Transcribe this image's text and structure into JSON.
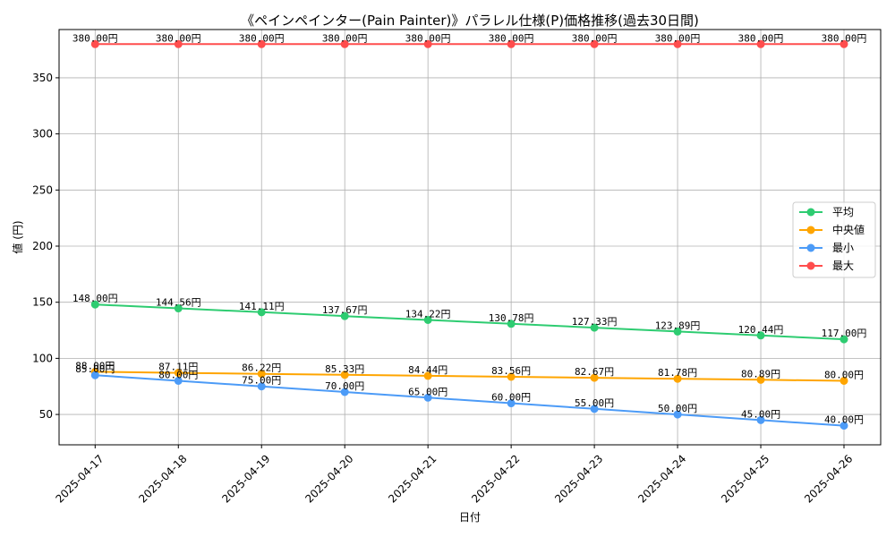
{
  "chart_data": {
    "type": "line",
    "title": "《ペインペインター(Pain Painter)》パラレル仕様(P)価格推移(過去30日間)",
    "xlabel": "日付",
    "ylabel": "値 (円)",
    "x": [
      "2025-04-17",
      "2025-04-18",
      "2025-04-19",
      "2025-04-20",
      "2025-04-21",
      "2025-04-22",
      "2025-04-23",
      "2025-04-24",
      "2025-04-25",
      "2025-04-26"
    ],
    "ylim": [
      22.95,
      393.0
    ],
    "yticks": [
      50,
      100,
      150,
      200,
      250,
      300,
      350
    ],
    "grid": true,
    "legend_position": "center-right",
    "value_suffix": "円",
    "series": [
      {
        "name": "平均",
        "color": "#2ecc71",
        "values": [
          148.0,
          144.56,
          141.11,
          137.67,
          134.22,
          130.78,
          127.33,
          123.89,
          120.44,
          117.0
        ]
      },
      {
        "name": "中央値",
        "color": "#ffa500",
        "values": [
          88.0,
          87.11,
          86.22,
          85.33,
          84.44,
          83.56,
          82.67,
          81.78,
          80.89,
          80.0
        ]
      },
      {
        "name": "最小",
        "color": "#4c9bf7",
        "values": [
          85.0,
          80.0,
          75.0,
          70.0,
          65.0,
          60.0,
          55.0,
          50.0,
          45.0,
          40.0
        ]
      },
      {
        "name": "最大",
        "color": "#ff4d4d",
        "values": [
          380.0,
          380.0,
          380.0,
          380.0,
          380.0,
          380.0,
          380.0,
          380.0,
          380.0,
          380.0
        ]
      }
    ]
  }
}
